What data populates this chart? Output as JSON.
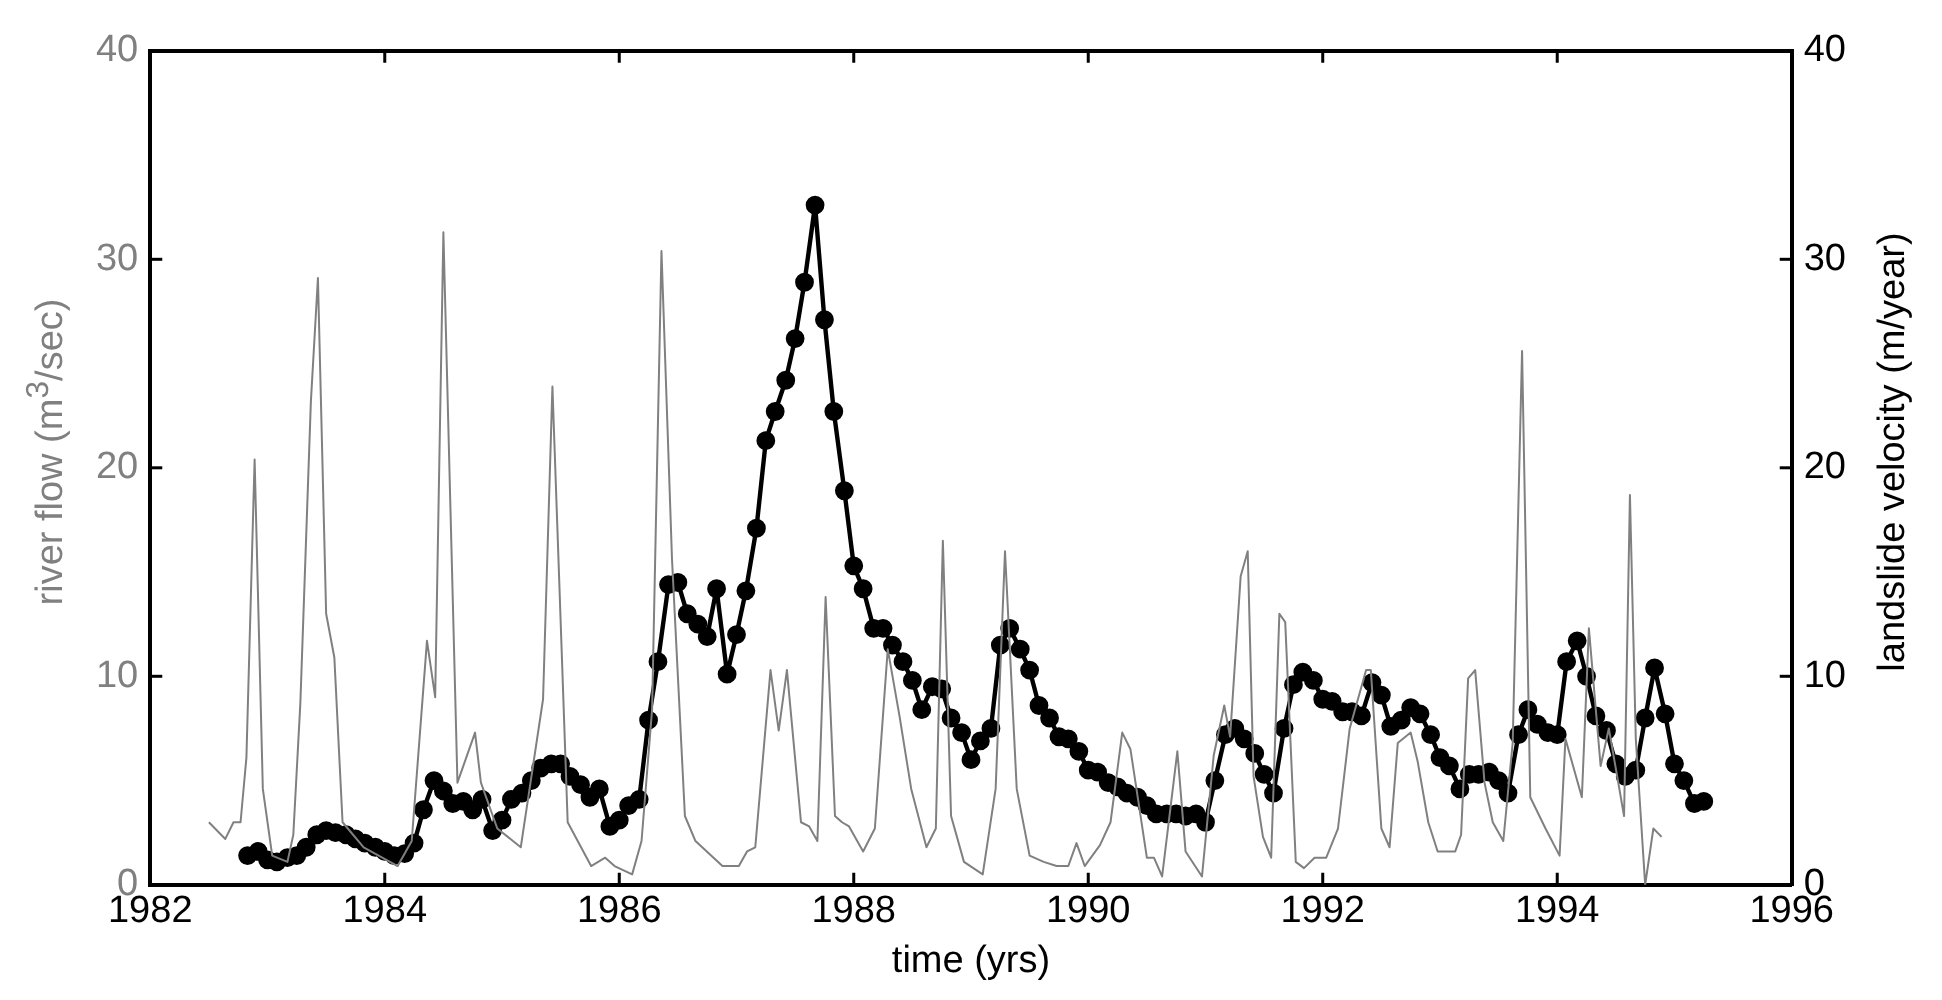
{
  "chart_data": {
    "type": "line",
    "xlabel": "time (yrs)",
    "ylabel": "river flow (m$^{3}$/sec)",
    "y2label": "landslide velocity (m/year)",
    "xlim": [
      1982,
      1996
    ],
    "xticks": [
      1982,
      1984,
      1986,
      1988,
      1990,
      1992,
      1994,
      1996
    ],
    "ylim": [
      0,
      40
    ],
    "yticks": [
      0,
      10,
      20,
      30,
      40
    ],
    "y2lim": [
      0,
      40
    ],
    "y2ticks": [
      0,
      10,
      20,
      30,
      40
    ],
    "grid": false,
    "legend": false,
    "line_style": "solid",
    "series": [
      {
        "color": "#808080",
        "marker": "none",
        "x": [
          1982.5,
          1982.64,
          1982.71,
          1982.77,
          1982.82,
          1982.89,
          1982.96,
          1983.04,
          1983.17,
          1983.22,
          1983.28,
          1983.37,
          1983.43,
          1983.5,
          1983.57,
          1983.64,
          1983.82,
          1984.11,
          1984.23,
          1984.36,
          1984.43,
          1984.5,
          1984.62,
          1984.77,
          1984.82,
          1984.96,
          1985.16,
          1985.35,
          1985.43,
          1985.56,
          1985.76,
          1985.88,
          1985.96,
          1986.11,
          1986.19,
          1986.28,
          1986.36,
          1986.45,
          1986.56,
          1986.65,
          1986.88,
          1987.02,
          1987.09,
          1987.16,
          1987.29,
          1987.36,
          1987.43,
          1987.55,
          1987.62,
          1987.69,
          1987.76,
          1987.84,
          1987.9,
          1987.96,
          1988.08,
          1988.18,
          1988.29,
          1988.39,
          1988.49,
          1988.62,
          1988.7,
          1988.76,
          1988.83,
          1988.94,
          1989.1,
          1989.21,
          1989.29,
          1989.39,
          1989.5,
          1989.62,
          1989.73,
          1989.83,
          1989.9,
          1989.97,
          1990.1,
          1990.19,
          1990.29,
          1990.36,
          1990.5,
          1990.56,
          1990.63,
          1990.76,
          1990.83,
          1990.97,
          1991.07,
          1991.16,
          1991.21,
          1991.3,
          1991.36,
          1991.41,
          1991.49,
          1991.56,
          1991.63,
          1991.68,
          1991.77,
          1991.84,
          1991.93,
          1992.03,
          1992.13,
          1992.23,
          1992.37,
          1992.41,
          1992.5,
          1992.57,
          1992.64,
          1992.75,
          1992.81,
          1992.9,
          1992.98,
          1993.13,
          1993.18,
          1993.24,
          1993.3,
          1993.38,
          1993.45,
          1993.54,
          1993.62,
          1993.7,
          1993.77,
          1993.9,
          1994.02,
          1994.07,
          1994.21,
          1994.27,
          1994.37,
          1994.44,
          1994.57,
          1994.62,
          1994.67,
          1994.75,
          1994.82,
          1994.89
        ],
        "values": [
          3.0,
          2.2,
          3.0,
          3.0,
          6.1,
          20.4,
          4.6,
          1.4,
          1.1,
          2.4,
          8.7,
          23.2,
          29.1,
          13.0,
          10.9,
          3.0,
          1.8,
          0.9,
          2.1,
          11.7,
          9.0,
          31.3,
          4.9,
          7.3,
          4.9,
          2.7,
          1.8,
          8.9,
          23.9,
          3.0,
          0.9,
          1.3,
          0.9,
          0.5,
          2.1,
          8.4,
          30.4,
          15.6,
          3.3,
          2.1,
          0.9,
          0.9,
          1.6,
          1.8,
          10.3,
          7.4,
          10.3,
          3.0,
          2.8,
          2.1,
          13.8,
          3.3,
          3.0,
          2.8,
          1.6,
          2.7,
          11.3,
          8.1,
          4.6,
          1.8,
          2.7,
          16.5,
          3.3,
          1.1,
          0.5,
          4.6,
          16.0,
          4.6,
          1.4,
          1.1,
          0.9,
          0.9,
          2.0,
          0.9,
          1.9,
          3.0,
          7.3,
          6.5,
          1.3,
          1.3,
          0.4,
          6.4,
          1.6,
          0.4,
          6.2,
          8.6,
          7.1,
          14.8,
          16.0,
          5.2,
          2.3,
          1.3,
          13.0,
          12.6,
          1.1,
          0.8,
          1.3,
          1.3,
          2.7,
          7.5,
          10.3,
          10.3,
          2.7,
          1.8,
          6.8,
          7.3,
          5.9,
          3.0,
          1.6,
          1.6,
          2.4,
          9.9,
          10.3,
          4.9,
          3.0,
          2.1,
          6.8,
          25.6,
          4.2,
          2.7,
          1.4,
          7.0,
          4.2,
          12.3,
          5.7,
          7.5,
          3.3,
          18.7,
          7.0,
          0,
          2.7,
          2.3
        ]
      },
      {
        "color": "#000000",
        "marker": "circle",
        "axis": "y2",
        "x": [
          1982.83,
          1982.92,
          1983.0,
          1983.08,
          1983.17,
          1983.25,
          1983.33,
          1983.42,
          1983.5,
          1983.58,
          1983.67,
          1983.75,
          1983.83,
          1983.92,
          1984.0,
          1984.08,
          1984.17,
          1984.25,
          1984.33,
          1984.42,
          1984.5,
          1984.58,
          1984.67,
          1984.75,
          1984.83,
          1984.92,
          1985.0,
          1985.08,
          1985.17,
          1985.25,
          1985.33,
          1985.42,
          1985.5,
          1985.58,
          1985.67,
          1985.75,
          1985.83,
          1985.92,
          1986.0,
          1986.08,
          1986.17,
          1986.25,
          1986.33,
          1986.42,
          1986.5,
          1986.58,
          1986.67,
          1986.75,
          1986.83,
          1986.92,
          1987.0,
          1987.08,
          1987.17,
          1987.25,
          1987.33,
          1987.42,
          1987.5,
          1987.58,
          1987.67,
          1987.75,
          1987.83,
          1987.92,
          1988.0,
          1988.08,
          1988.17,
          1988.25,
          1988.33,
          1988.42,
          1988.5,
          1988.58,
          1988.67,
          1988.75,
          1988.83,
          1988.92,
          1989.0,
          1989.08,
          1989.17,
          1989.25,
          1989.33,
          1989.42,
          1989.5,
          1989.58,
          1989.67,
          1989.75,
          1989.83,
          1989.92,
          1990.0,
          1990.08,
          1990.17,
          1990.25,
          1990.33,
          1990.42,
          1990.5,
          1990.58,
          1990.67,
          1990.75,
          1990.83,
          1990.92,
          1991.0,
          1991.08,
          1991.17,
          1991.25,
          1991.33,
          1991.42,
          1991.5,
          1991.58,
          1991.67,
          1991.75,
          1991.83,
          1991.92,
          1992.0,
          1992.08,
          1992.17,
          1992.25,
          1992.33,
          1992.42,
          1992.5,
          1992.58,
          1992.67,
          1992.75,
          1992.83,
          1992.92,
          1993.0,
          1993.08,
          1993.17,
          1993.25,
          1993.33,
          1993.42,
          1993.5,
          1993.58,
          1993.67,
          1993.75,
          1993.83,
          1993.92,
          1994.0,
          1994.08,
          1994.17,
          1994.25,
          1994.33,
          1994.42,
          1994.5,
          1994.58,
          1994.67,
          1994.75,
          1994.83,
          1994.92,
          1995.0,
          1995.08,
          1995.17,
          1995.25
        ],
        "values": [
          1.4,
          1.6,
          1.2,
          1.1,
          1.3,
          1.4,
          1.8,
          2.4,
          2.6,
          2.5,
          2.4,
          2.2,
          2.0,
          1.8,
          1.6,
          1.4,
          1.5,
          2.0,
          3.6,
          5.0,
          4.5,
          3.9,
          4.0,
          3.6,
          4.1,
          2.6,
          3.1,
          4.1,
          4.4,
          5.0,
          5.6,
          5.8,
          5.8,
          5.2,
          4.8,
          4.2,
          4.6,
          2.8,
          3.1,
          3.8,
          4.1,
          7.9,
          10.7,
          14.4,
          14.5,
          13.0,
          12.5,
          11.9,
          14.2,
          10.1,
          12.0,
          14.1,
          17.1,
          21.3,
          22.7,
          24.2,
          26.2,
          28.9,
          32.6,
          27.1,
          22.7,
          18.9,
          15.3,
          14.2,
          12.3,
          12.3,
          11.5,
          10.7,
          9.8,
          8.4,
          9.5,
          9.4,
          8.0,
          7.3,
          6.0,
          6.9,
          7.5,
          11.5,
          12.3,
          11.3,
          10.3,
          8.6,
          8.0,
          7.1,
          7.0,
          6.4,
          5.5,
          5.4,
          4.9,
          4.7,
          4.4,
          4.2,
          3.8,
          3.4,
          3.4,
          3.4,
          3.3,
          3.4,
          3.0,
          5.0,
          7.2,
          7.5,
          7.0,
          6.3,
          5.3,
          4.4,
          7.5,
          9.6,
          10.2,
          9.8,
          8.9,
          8.8,
          8.3,
          8.3,
          8.1,
          9.7,
          9.1,
          7.6,
          7.9,
          8.5,
          8.2,
          7.2,
          6.1,
          5.7,
          4.6,
          5.3,
          5.3,
          5.4,
          5.0,
          4.4,
          7.2,
          8.4,
          7.7,
          7.3,
          7.2,
          10.7,
          11.7,
          10.0,
          8.1,
          7.4,
          5.8,
          5.2,
          5.5,
          8.0,
          10.4,
          8.2,
          5.8,
          5.0,
          3.9,
          4.0
        ]
      }
    ]
  }
}
